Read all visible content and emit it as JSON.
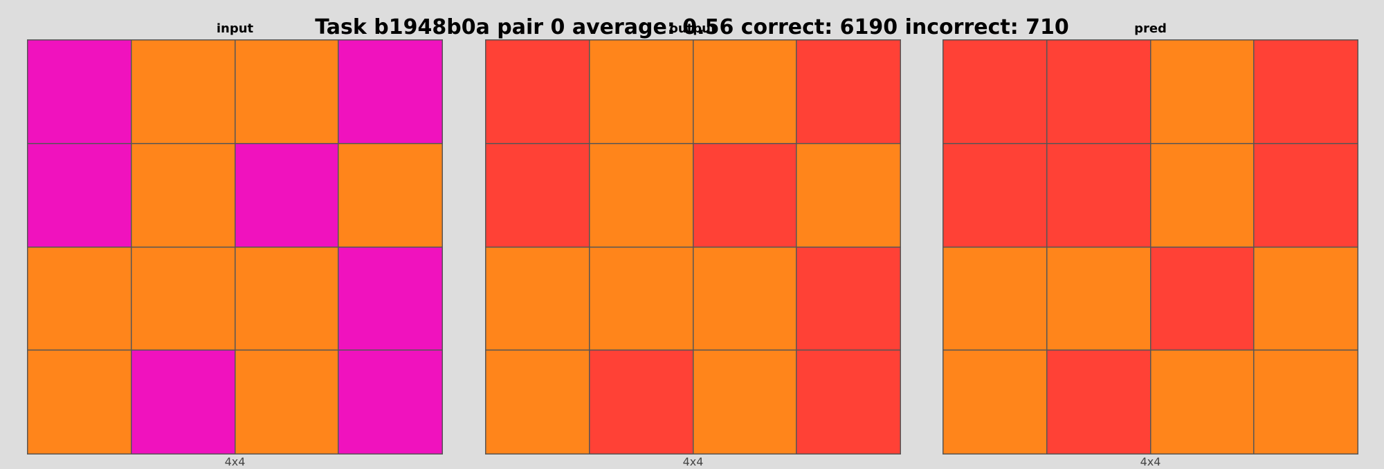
{
  "title": "Task b1948b0a pair 0 average: 0.56 correct: 6190 incorrect: 710",
  "colors": {
    "magenta": "#f012be",
    "orange": "#ff851b",
    "red": "#ff4136"
  },
  "panels": [
    {
      "label": "input",
      "dims": "4x4",
      "grid": [
        [
          "magenta",
          "orange",
          "orange",
          "magenta"
        ],
        [
          "magenta",
          "orange",
          "magenta",
          "orange"
        ],
        [
          "orange",
          "orange",
          "orange",
          "magenta"
        ],
        [
          "orange",
          "magenta",
          "orange",
          "magenta"
        ]
      ]
    },
    {
      "label": "output",
      "dims": "4x4",
      "grid": [
        [
          "red",
          "orange",
          "orange",
          "red"
        ],
        [
          "red",
          "orange",
          "red",
          "orange"
        ],
        [
          "orange",
          "orange",
          "orange",
          "red"
        ],
        [
          "orange",
          "red",
          "orange",
          "red"
        ]
      ]
    },
    {
      "label": "pred",
      "dims": "4x4",
      "grid": [
        [
          "red",
          "red",
          "orange",
          "red"
        ],
        [
          "red",
          "red",
          "orange",
          "red"
        ],
        [
          "orange",
          "orange",
          "red",
          "orange"
        ],
        [
          "orange",
          "red",
          "orange",
          "orange"
        ]
      ]
    }
  ]
}
